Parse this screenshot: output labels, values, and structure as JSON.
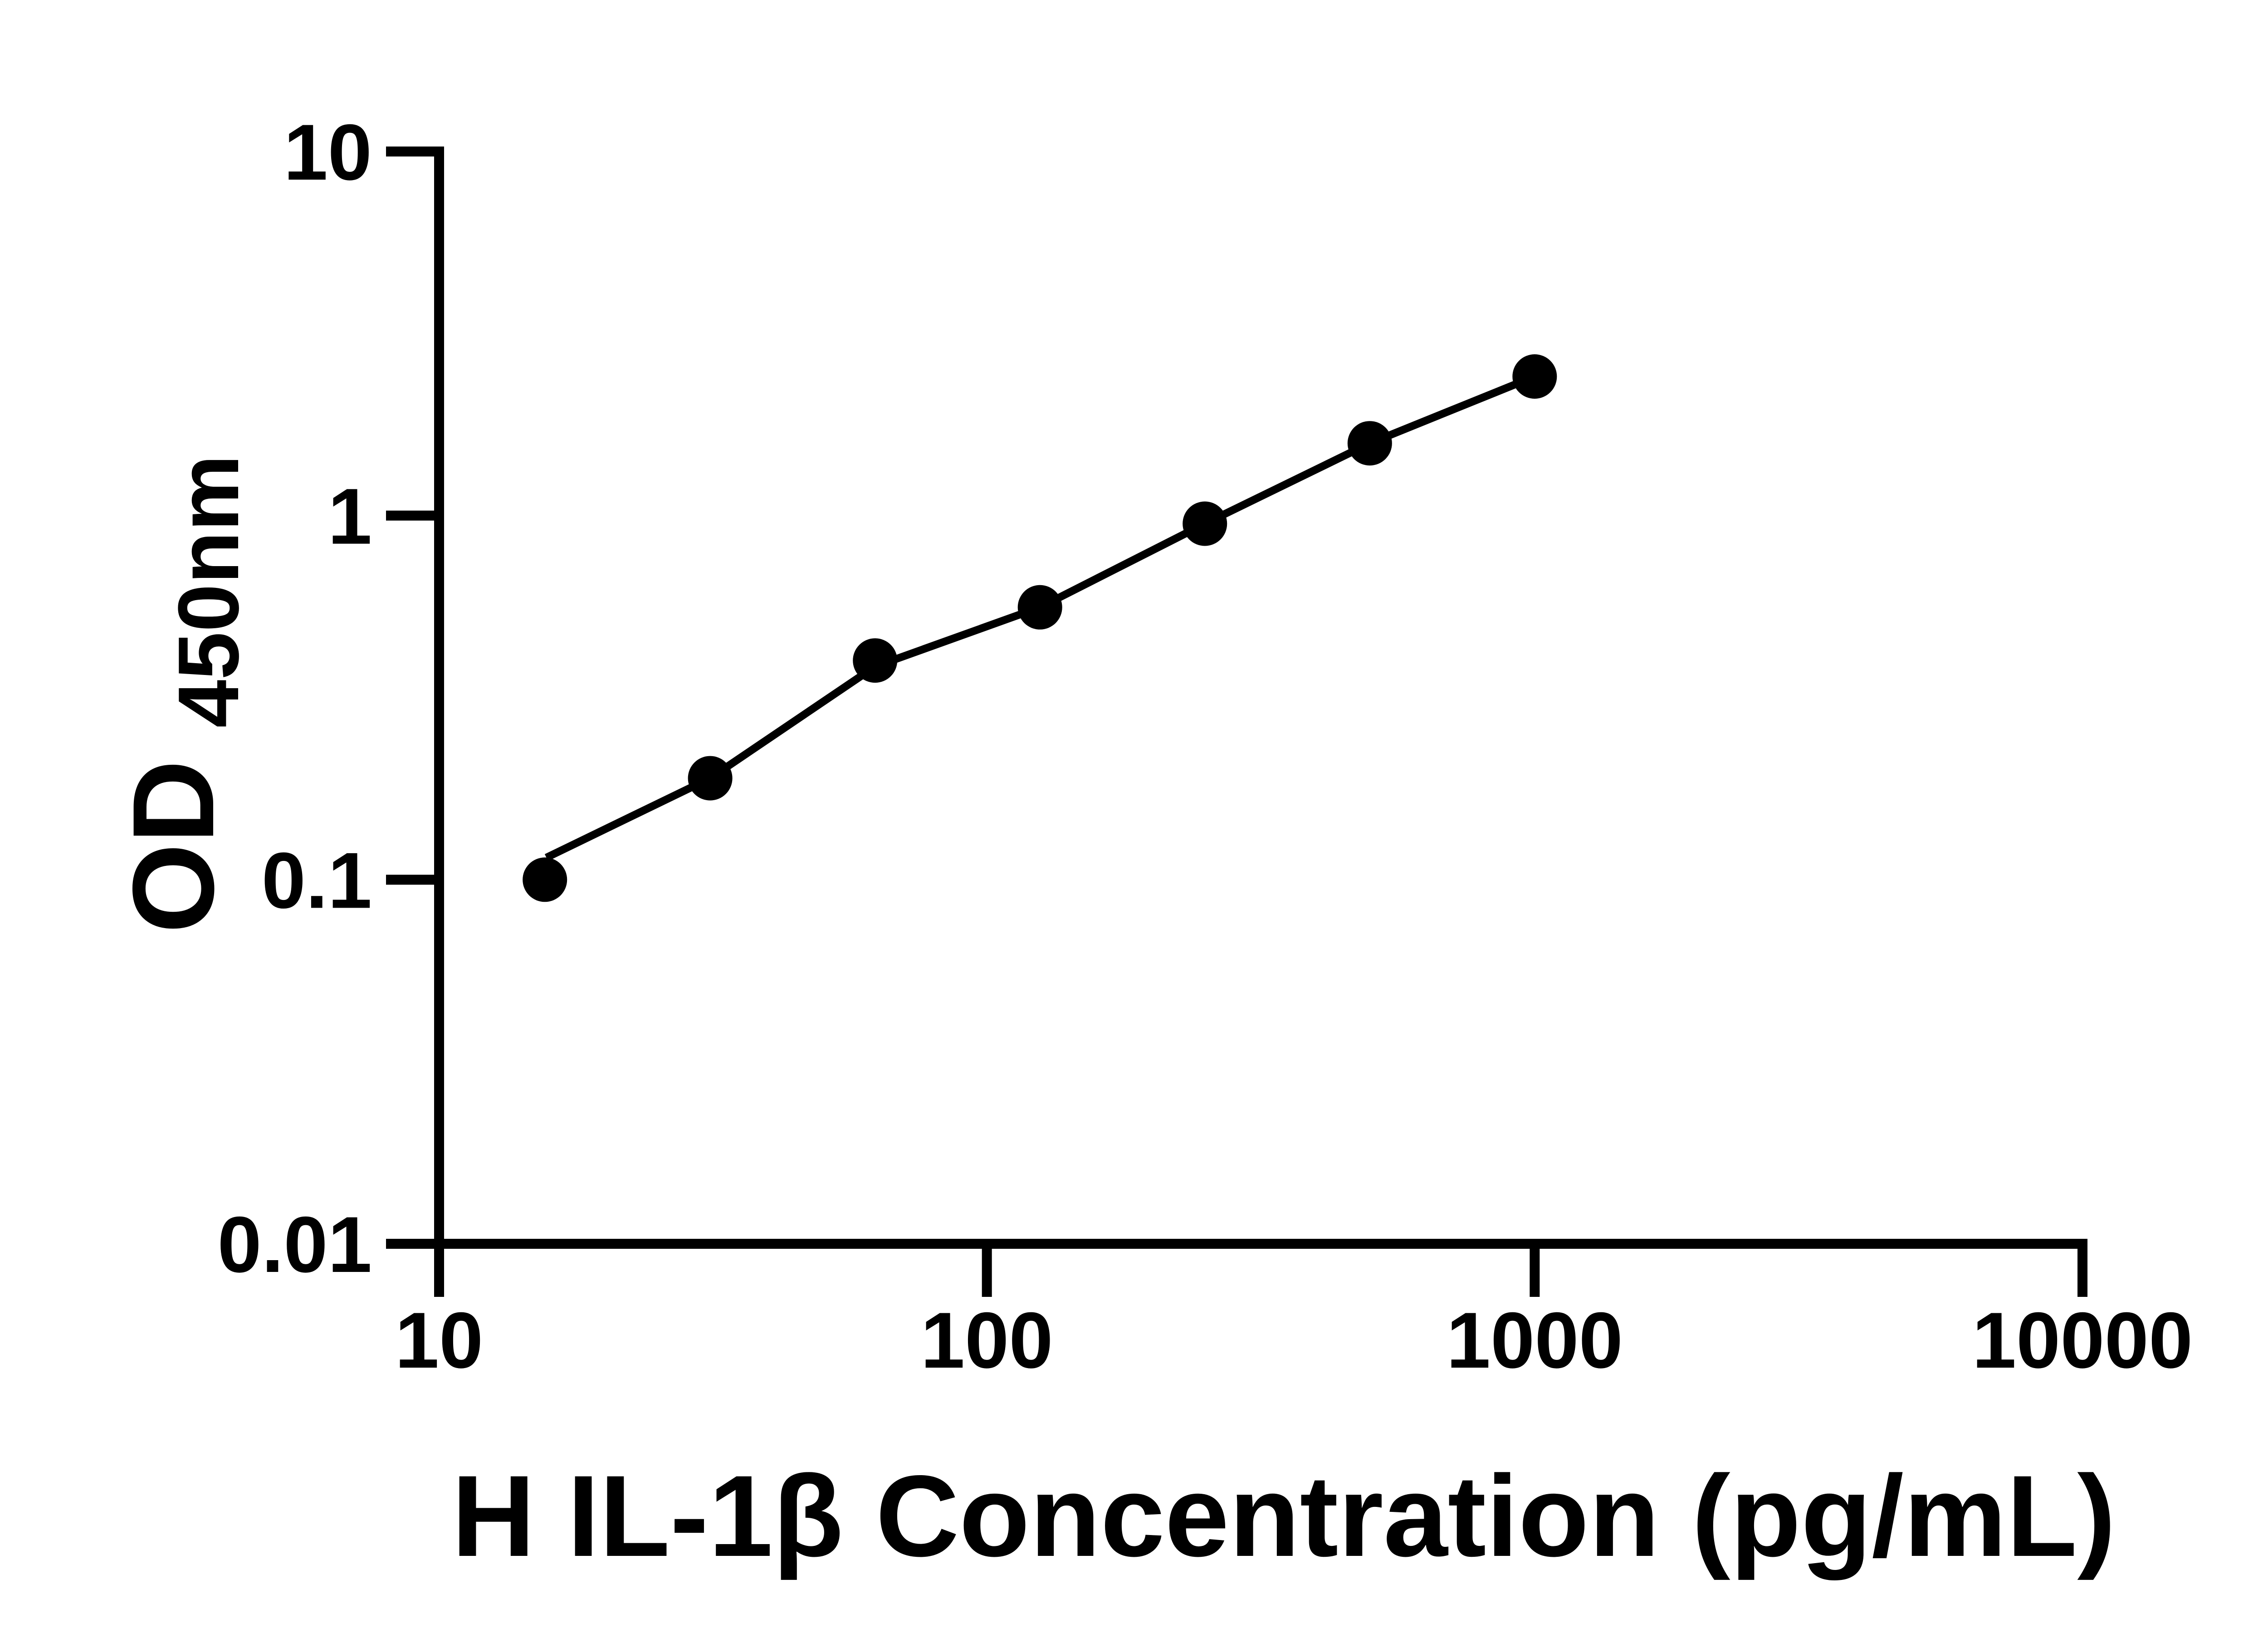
{
  "figure": {
    "background_color": "#ffffff",
    "ink_color": "#000000"
  },
  "chart_data": {
    "type": "scatter",
    "title": "",
    "xlabel": "H IL-1β Concentration (pg/mL)",
    "ylabel_main": "OD",
    "ylabel_subscript": "450nm",
    "x_scale": "log",
    "y_scale": "log",
    "xlim": [
      10,
      10000
    ],
    "ylim": [
      0.01,
      10
    ],
    "grid": false,
    "legend_position": "none",
    "x_ticks": [
      {
        "value": 10,
        "label": "10"
      },
      {
        "value": 100,
        "label": "100"
      },
      {
        "value": 1000,
        "label": "1000"
      },
      {
        "value": 10000,
        "label": "10000"
      }
    ],
    "y_ticks": [
      {
        "value": 10,
        "label": "10"
      },
      {
        "value": 1,
        "label": "1"
      },
      {
        "value": 0.1,
        "label": "0.1"
      },
      {
        "value": 0.01,
        "label": "0.01"
      }
    ],
    "series": [
      {
        "name": "standard-points",
        "type": "scatter",
        "marker": "circle",
        "marker_radius_px": 49,
        "color": "#000000",
        "points": [
          {
            "x": 15.6,
            "y": 0.1
          },
          {
            "x": 31.25,
            "y": 0.19
          },
          {
            "x": 62.5,
            "y": 0.4
          },
          {
            "x": 125,
            "y": 0.56
          },
          {
            "x": 250,
            "y": 0.95
          },
          {
            "x": 500,
            "y": 1.58
          },
          {
            "x": 1000,
            "y": 2.41
          }
        ]
      },
      {
        "name": "fit-curve",
        "type": "line",
        "color": "#000000",
        "points": [
          {
            "x": 15.7,
            "y": 0.115
          },
          {
            "x": 31.25,
            "y": 0.19
          },
          {
            "x": 62.5,
            "y": 0.385
          },
          {
            "x": 125,
            "y": 0.56
          },
          {
            "x": 250,
            "y": 0.95
          },
          {
            "x": 500,
            "y": 1.58
          },
          {
            "x": 1000,
            "y": 2.41
          }
        ]
      }
    ]
  }
}
